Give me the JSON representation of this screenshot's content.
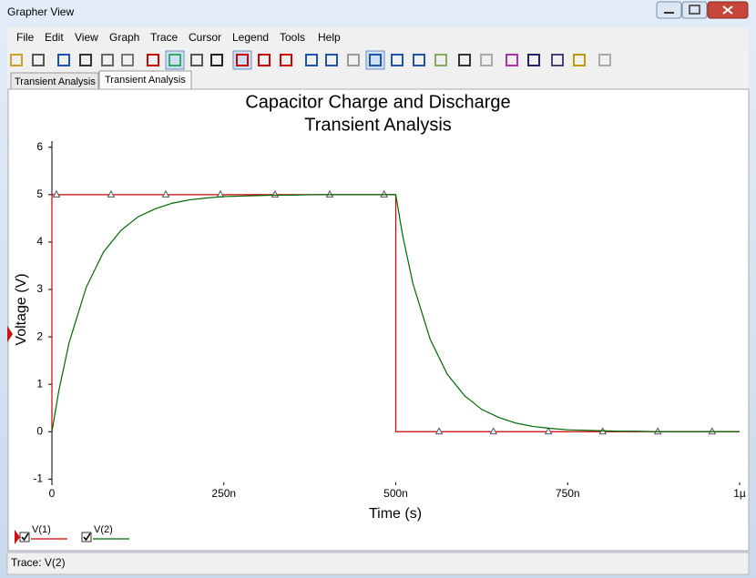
{
  "window": {
    "title": "Grapher View"
  },
  "menu": [
    "File",
    "Edit",
    "View",
    "Graph",
    "Trace",
    "Cursor",
    "Legend",
    "Tools",
    "Help"
  ],
  "tabs": [
    "Transient Analysis",
    "Transient Analysis"
  ],
  "status": "Trace: V(2)",
  "chart_data": {
    "type": "line",
    "title": "Capacitor Charge and Discharge",
    "subtitle": "Transient Analysis",
    "x_label": "Time (s)",
    "y_label": "Voltage (V)",
    "xlim": [
      0,
      1e-06
    ],
    "ylim": [
      -1.07,
      6.13
    ],
    "xticks": [
      {
        "value": 0,
        "label": "0"
      },
      {
        "value": 2.5e-07,
        "label": "250n"
      },
      {
        "value": 5e-07,
        "label": "500n"
      },
      {
        "value": 7.5e-07,
        "label": "750n"
      },
      {
        "value": 1e-06,
        "label": "1µ"
      }
    ],
    "yticks": [
      -1,
      0,
      1,
      2,
      3,
      4,
      5,
      6
    ],
    "series": [
      {
        "name": "V(1)",
        "color": "#cc0000",
        "markers": true,
        "x": [
          0,
          0,
          6.6e-09,
          8.6e-08,
          1.656e-07,
          2.45e-07,
          3.245e-07,
          4.04e-07,
          4.83e-07,
          5e-07,
          5e-07,
          5.63e-07,
          6.42e-07,
          7.22e-07,
          8.01e-07,
          8.81e-07,
          9.6e-07,
          1e-06
        ],
        "values": [
          0,
          5,
          5,
          5,
          5,
          5,
          5,
          5,
          5,
          5,
          0,
          0,
          0,
          0,
          0,
          0,
          0,
          0
        ]
      },
      {
        "name": "V(2)",
        "color": "#006600",
        "markers": false,
        "x": [
          0,
          1e-08,
          2.5e-08,
          5e-08,
          7.5e-08,
          1e-07,
          1.25e-07,
          1.5e-07,
          1.75e-07,
          2e-07,
          2.25e-07,
          2.5e-07,
          2.75e-07,
          3e-07,
          3.25e-07,
          3.5e-07,
          3.75e-07,
          4e-07,
          4.5e-07,
          5e-07,
          5.1e-07,
          5.25e-07,
          5.5e-07,
          5.75e-07,
          6e-07,
          6.25e-07,
          6.5e-07,
          6.75e-07,
          7e-07,
          7.25e-07,
          7.5e-07,
          7.75e-07,
          8e-07,
          8.25e-07,
          8.5e-07,
          8.75e-07,
          9e-07,
          9.5e-07,
          1e-06
        ],
        "values": [
          0,
          0.86,
          1.88,
          3.05,
          3.79,
          4.24,
          4.53,
          4.7,
          4.82,
          4.89,
          4.93,
          4.96,
          4.97,
          4.98,
          4.99,
          4.99,
          5,
          5,
          5,
          5,
          4.14,
          3.12,
          1.95,
          1.21,
          0.76,
          0.47,
          0.3,
          0.18,
          0.11,
          0.07,
          0.04,
          0.03,
          0.02,
          0.01,
          0.01,
          0,
          0,
          0,
          0
        ]
      }
    ]
  }
}
